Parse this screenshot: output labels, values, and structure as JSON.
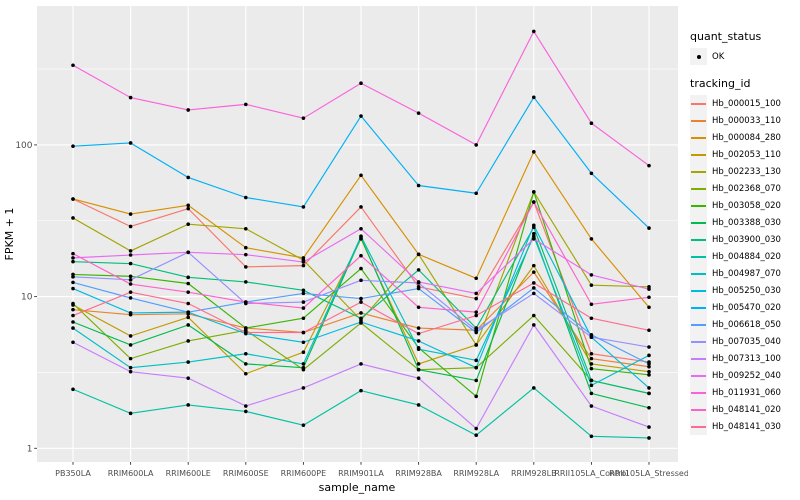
{
  "legend": {
    "quant_status": {
      "title": "quant_status",
      "items": [
        {
          "label": "OK",
          "symbol": "black-point"
        }
      ]
    },
    "tracking": {
      "title": "tracking_id"
    }
  },
  "chart_data": {
    "type": "line",
    "title": "",
    "xlabel": "sample_name",
    "ylabel": "FPKM + 1",
    "yscale": "log10",
    "ylim": [
      0.81,
      820
    ],
    "y_major_ticks": [
      1,
      10,
      100
    ],
    "y_tick_labels": [
      "1",
      "10",
      "100"
    ],
    "y_minor_ticks": [
      3.162,
      31.62,
      316.2
    ],
    "grid": "on",
    "panel_background": "#EBEBEB",
    "gridline_color": "#FFFFFF",
    "marker": "black-point",
    "legend_position": "right",
    "categories": [
      "PB350LA",
      "RRIM600LA",
      "RRIM600LE",
      "RRIM600SE",
      "RRIM600PE",
      "RRIM901LA",
      "RRIM928BA",
      "RRIM928LA",
      "RRIM928LB",
      "RRII105LA_Control",
      "RRII105LA_Stressed"
    ],
    "series": [
      {
        "name": "Hb_000015_100",
        "color": "#F8766D",
        "values": [
          44,
          29,
          38,
          15.7,
          16,
          39,
          11.6,
          9.7,
          42,
          4.2,
          3.7
        ]
      },
      {
        "name": "Hb_000033_110",
        "color": "#EA8331",
        "values": [
          8.2,
          7.6,
          7.7,
          6.2,
          5.8,
          7.8,
          6.2,
          6.0,
          14.5,
          3.9,
          3.45
        ]
      },
      {
        "name": "Hb_000084_280",
        "color": "#D89000",
        "values": [
          44,
          35,
          40,
          21,
          18,
          63,
          19,
          13.2,
          90,
          24,
          8.5
        ]
      },
      {
        "name": "Hb_002053_110",
        "color": "#C09B00",
        "values": [
          8.8,
          5.5,
          7.3,
          3.1,
          4.3,
          24,
          3.6,
          4.8,
          16,
          3.6,
          3.2
        ]
      },
      {
        "name": "Hb_002233_130",
        "color": "#A3A500",
        "values": [
          33,
          20,
          30,
          28,
          17.4,
          7.0,
          19,
          4.8,
          49,
          11.9,
          11.6
        ]
      },
      {
        "name": "Hb_002368_070",
        "color": "#7CAE00",
        "values": [
          9.0,
          3.9,
          5.1,
          6.0,
          3.3,
          6.7,
          3.3,
          3.4,
          7.5,
          2.8,
          2.3
        ]
      },
      {
        "name": "Hb_003058_020",
        "color": "#39B600",
        "values": [
          14,
          13.6,
          12.2,
          6.2,
          7.2,
          15.3,
          4.6,
          2.2,
          49,
          3.35,
          3.05
        ]
      },
      {
        "name": "Hb_003388_030",
        "color": "#00BB4E",
        "values": [
          6.8,
          4.8,
          6.5,
          3.6,
          3.4,
          24.5,
          3.3,
          2.8,
          26,
          2.3,
          1.85
        ]
      },
      {
        "name": "Hb_003900_030",
        "color": "#00BF7D",
        "values": [
          17,
          16.5,
          13.4,
          12.5,
          11,
          7.2,
          15,
          6.2,
          28.6,
          2.8,
          2.3
        ]
      },
      {
        "name": "Hb_004884_020",
        "color": "#00C1A3",
        "values": [
          2.45,
          1.7,
          1.93,
          1.75,
          1.42,
          2.4,
          1.93,
          1.22,
          2.5,
          1.2,
          1.17
        ]
      },
      {
        "name": "Hb_004987_070",
        "color": "#00BFC4",
        "values": [
          6.2,
          3.4,
          3.7,
          4.2,
          3.6,
          25,
          4.5,
          3.8,
          25,
          2.6,
          4.1
        ]
      },
      {
        "name": "Hb_005250_030",
        "color": "#00BAE0",
        "values": [
          11.3,
          7.8,
          7.9,
          5.7,
          5.0,
          6.8,
          5.1,
          3.4,
          29.5,
          5.4,
          2.5
        ]
      },
      {
        "name": "Hb_005470_020",
        "color": "#00B0F6",
        "values": [
          98,
          103,
          61,
          45,
          39,
          155,
          54,
          48,
          206,
          65,
          28.3
        ]
      },
      {
        "name": "Hb_006618_050",
        "color": "#529EFF",
        "values": [
          12.4,
          9.8,
          7.9,
          9.2,
          10.5,
          9.7,
          11.3,
          5.8,
          11.4,
          5.6,
          3.6
        ]
      },
      {
        "name": "Hb_007035_040",
        "color": "#9590FF",
        "values": [
          13.5,
          12.9,
          19.6,
          9.0,
          9.2,
          12.8,
          12.3,
          6.0,
          10.5,
          5.4,
          4.65
        ]
      },
      {
        "name": "Hb_007313_100",
        "color": "#C77CFF",
        "values": [
          5.0,
          3.2,
          2.9,
          1.9,
          2.5,
          3.6,
          2.9,
          1.35,
          6.5,
          1.9,
          1.38
        ]
      },
      {
        "name": "Hb_009252_040",
        "color": "#E76BF3",
        "values": [
          18.0,
          18.8,
          19.6,
          18.9,
          16.9,
          28,
          12.5,
          10.5,
          24,
          13.9,
          11.2
        ]
      },
      {
        "name": "Hb_011931_060",
        "color": "#FA62DB",
        "values": [
          335,
          205,
          170,
          185,
          150,
          255,
          162,
          100,
          560,
          139,
          73
        ]
      },
      {
        "name": "Hb_048141_020",
        "color": "#FF61CC",
        "values": [
          19.2,
          12.1,
          10.7,
          9.2,
          8.4,
          18.6,
          8.5,
          7.9,
          42,
          8.9,
          9.9
        ]
      },
      {
        "name": "Hb_048141_030",
        "color": "#FF6C91",
        "values": [
          7.5,
          10.7,
          9.0,
          5.8,
          5.8,
          9.2,
          5.7,
          7.5,
          12.3,
          7.2,
          6.0
        ]
      }
    ]
  }
}
